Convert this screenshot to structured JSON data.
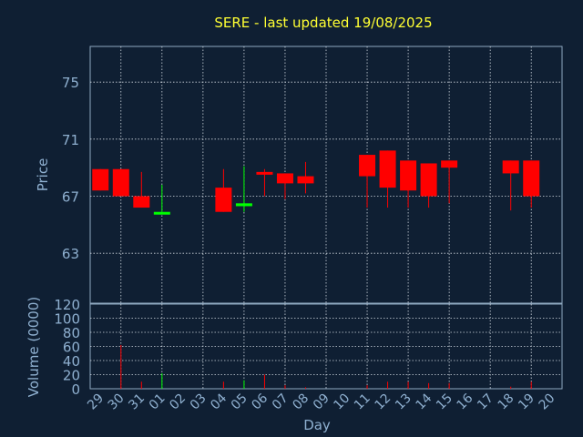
{
  "chart_data": {
    "type": "candlestick",
    "title": "SERE - last updated 19/08/2025",
    "xlabel": "Day",
    "price_ylabel": "Price",
    "volume_ylabel": "Volume (0000)",
    "categories": [
      "29",
      "30",
      "31",
      "01",
      "02",
      "03",
      "04",
      "05",
      "06",
      "07",
      "08",
      "09",
      "10",
      "11",
      "12",
      "13",
      "14",
      "15",
      "16",
      "17",
      "18",
      "19",
      "20"
    ],
    "price_ylim": [
      59.5,
      77.5
    ],
    "price_ticks": [
      "75",
      "71",
      "67",
      "63"
    ],
    "price_tick_values": [
      75,
      71,
      67,
      63
    ],
    "volume_ylim": [
      0,
      120
    ],
    "volume_ticks": [
      "120",
      "100",
      "80",
      "60",
      "40",
      "20",
      "0"
    ],
    "volume_tick_values": [
      120,
      100,
      80,
      60,
      40,
      20,
      0
    ],
    "up_color": "#00ff00",
    "down_color": "#ff0000",
    "grid": true,
    "candles": [
      {
        "day": "29",
        "open": 68.9,
        "high": 68.9,
        "low": 67.4,
        "close": 67.4,
        "volume": 0
      },
      {
        "day": "30",
        "open": 68.9,
        "high": 68.9,
        "low": 67.0,
        "close": 67.0,
        "volume": 62
      },
      {
        "day": "31",
        "open": 67.0,
        "high": 68.7,
        "low": 66.2,
        "close": 66.2,
        "volume": 10
      },
      {
        "day": "01",
        "open": 65.9,
        "high": 67.8,
        "low": 65.9,
        "close": 65.9,
        "volume": 22
      },
      {
        "day": "04",
        "open": 67.6,
        "high": 68.9,
        "low": 65.9,
        "close": 65.9,
        "volume": 10
      },
      {
        "day": "05",
        "open": 66.3,
        "high": 69.1,
        "low": 65.9,
        "close": 66.5,
        "volume": 12
      },
      {
        "day": "06",
        "open": 68.7,
        "high": 68.9,
        "low": 67.0,
        "close": 68.6,
        "volume": 20
      },
      {
        "day": "07",
        "open": 68.6,
        "high": 68.6,
        "low": 66.8,
        "close": 67.9,
        "volume": 5
      },
      {
        "day": "08",
        "open": 68.4,
        "high": 69.4,
        "low": 67.2,
        "close": 67.9,
        "volume": 2
      },
      {
        "day": "11",
        "open": 69.9,
        "high": 69.9,
        "low": 66.2,
        "close": 68.4,
        "volume": 5
      },
      {
        "day": "12",
        "open": 70.2,
        "high": 70.2,
        "low": 66.2,
        "close": 67.6,
        "volume": 10
      },
      {
        "day": "13",
        "open": 69.5,
        "high": 69.5,
        "low": 66.2,
        "close": 67.4,
        "volume": 10
      },
      {
        "day": "14",
        "open": 69.3,
        "high": 69.3,
        "low": 66.2,
        "close": 67.0,
        "volume": 8
      },
      {
        "day": "15",
        "open": 69.5,
        "high": 69.5,
        "low": 66.5,
        "close": 69.0,
        "volume": 8
      },
      {
        "day": "18",
        "open": 69.5,
        "high": 69.5,
        "low": 66.0,
        "close": 68.6,
        "volume": 3
      },
      {
        "day": "19",
        "open": 69.5,
        "high": 69.5,
        "low": 66.2,
        "close": 67.0,
        "volume": 10
      }
    ]
  }
}
